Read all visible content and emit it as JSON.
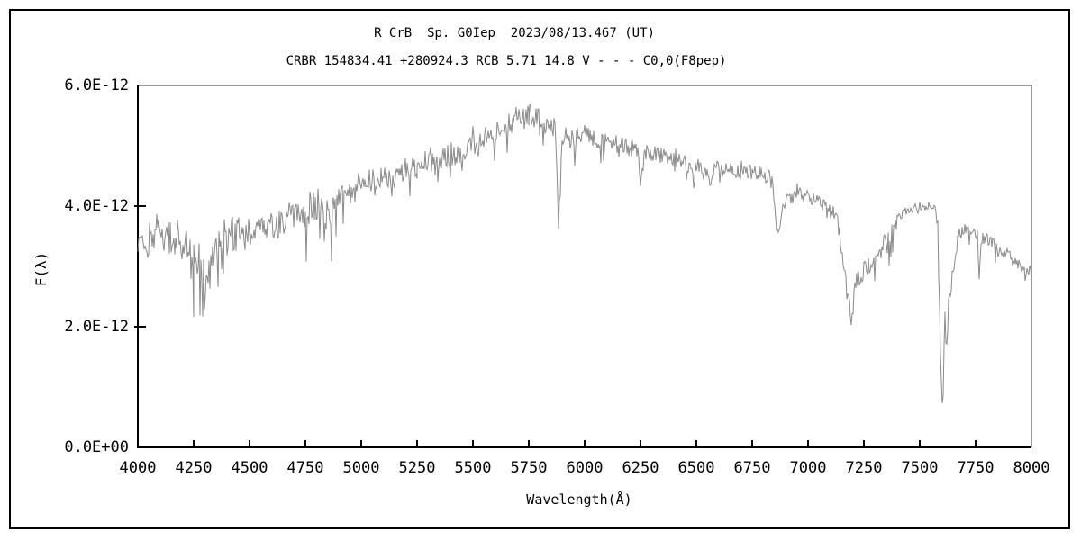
{
  "page": {
    "title_line1": "R CrB  Sp. G0Iep  2023/08/13.467 (UT)",
    "title_line2": "CRBR 154834.41 +280924.3 RCB 5.71 14.8 V - - - C0,0(F8pep)"
  },
  "chart_data": {
    "type": "line",
    "title": "R CrB  Sp. G0Iep  2023/08/13.467 (UT)",
    "subtitle": "CRBR 154834.41 +280924.3 RCB 5.71 14.8 V - - - C0,0(F8pep)",
    "xlabel": "Wavelength(Å)",
    "ylabel": "F(λ)",
    "xlim": [
      4000,
      8000
    ],
    "ylim_e12": [
      0,
      6
    ],
    "grid": false,
    "legend": "none",
    "x_ticks": [
      {
        "label": "4000",
        "value": 4000
      },
      {
        "label": "4250",
        "value": 4250
      },
      {
        "label": "4500",
        "value": 4500
      },
      {
        "label": "4750",
        "value": 4750
      },
      {
        "label": "5000",
        "value": 5000
      },
      {
        "label": "5250",
        "value": 5250
      },
      {
        "label": "5500",
        "value": 5500
      },
      {
        "label": "5750",
        "value": 5750
      },
      {
        "label": "6000",
        "value": 6000
      },
      {
        "label": "6250",
        "value": 6250
      },
      {
        "label": "6500",
        "value": 6500
      },
      {
        "label": "6750",
        "value": 6750
      },
      {
        "label": "7000",
        "value": 7000
      },
      {
        "label": "7250",
        "value": 7250
      },
      {
        "label": "7500",
        "value": 7500
      },
      {
        "label": "7750",
        "value": 7750
      },
      {
        "label": "8000",
        "value": 8000
      }
    ],
    "y_ticks": [
      {
        "label": "0.0E+00",
        "value": 0
      },
      {
        "label": "2.0E-12",
        "value": 2
      },
      {
        "label": "4.0E-12",
        "value": 4
      },
      {
        "label": "6.0E-12",
        "value": 6
      }
    ],
    "colors": {
      "background": "#ffffff",
      "axis": "#000000",
      "box": "#9a9a9a",
      "line": "#8a8a8a",
      "text": "#000000"
    },
    "series": [
      {
        "name": "flux",
        "flux_scale": "1e-12",
        "envelope": [
          [
            4000,
            3.3
          ],
          [
            4030,
            3.2
          ],
          [
            4060,
            3.55
          ],
          [
            4090,
            3.6
          ],
          [
            4120,
            3.5
          ],
          [
            4150,
            3.45
          ],
          [
            4180,
            3.5
          ],
          [
            4210,
            3.45
          ],
          [
            4240,
            3.25
          ],
          [
            4270,
            3.15
          ],
          [
            4290,
            3.0
          ],
          [
            4310,
            2.85
          ],
          [
            4330,
            3.2
          ],
          [
            4360,
            3.45
          ],
          [
            4390,
            3.55
          ],
          [
            4420,
            3.5
          ],
          [
            4450,
            3.55
          ],
          [
            4480,
            3.55
          ],
          [
            4510,
            3.6
          ],
          [
            4540,
            3.65
          ],
          [
            4570,
            3.6
          ],
          [
            4600,
            3.65
          ],
          [
            4630,
            3.7
          ],
          [
            4660,
            3.8
          ],
          [
            4690,
            3.85
          ],
          [
            4720,
            3.8
          ],
          [
            4750,
            3.85
          ],
          [
            4780,
            3.9
          ],
          [
            4810,
            3.95
          ],
          [
            4850,
            3.95
          ],
          [
            4862,
            3.5
          ],
          [
            4875,
            3.95
          ],
          [
            4900,
            4.1
          ],
          [
            4930,
            4.15
          ],
          [
            4960,
            4.25
          ],
          [
            5000,
            4.4
          ],
          [
            5040,
            4.45
          ],
          [
            5080,
            4.5
          ],
          [
            5120,
            4.5
          ],
          [
            5160,
            4.45
          ],
          [
            5200,
            4.6
          ],
          [
            5240,
            4.65
          ],
          [
            5280,
            4.7
          ],
          [
            5320,
            4.7
          ],
          [
            5360,
            4.75
          ],
          [
            5400,
            4.85
          ],
          [
            5440,
            4.9
          ],
          [
            5480,
            4.95
          ],
          [
            5520,
            5.05
          ],
          [
            5560,
            5.15
          ],
          [
            5600,
            5.2
          ],
          [
            5640,
            5.3
          ],
          [
            5680,
            5.4
          ],
          [
            5720,
            5.45
          ],
          [
            5760,
            5.5
          ],
          [
            5800,
            5.45
          ],
          [
            5830,
            5.4
          ],
          [
            5870,
            5.3
          ],
          [
            5885,
            3.7
          ],
          [
            5900,
            5.0
          ],
          [
            5930,
            5.1
          ],
          [
            5960,
            5.15
          ],
          [
            6000,
            5.2
          ],
          [
            6040,
            5.15
          ],
          [
            6080,
            5.1
          ],
          [
            6120,
            5.05
          ],
          [
            6160,
            5.0
          ],
          [
            6200,
            4.95
          ],
          [
            6235,
            4.9
          ],
          [
            6252,
            4.35
          ],
          [
            6268,
            4.85
          ],
          [
            6300,
            4.9
          ],
          [
            6340,
            4.85
          ],
          [
            6380,
            4.8
          ],
          [
            6420,
            4.75
          ],
          [
            6460,
            4.7
          ],
          [
            6500,
            4.7
          ],
          [
            6540,
            4.6
          ],
          [
            6563,
            4.5
          ],
          [
            6590,
            4.65
          ],
          [
            6620,
            4.6
          ],
          [
            6660,
            4.6
          ],
          [
            6700,
            4.6
          ],
          [
            6740,
            4.55
          ],
          [
            6780,
            4.55
          ],
          [
            6820,
            4.5
          ],
          [
            6845,
            4.45
          ],
          [
            6862,
            3.5
          ],
          [
            6880,
            3.85
          ],
          [
            6900,
            4.1
          ],
          [
            6930,
            4.15
          ],
          [
            6960,
            4.2
          ],
          [
            7000,
            4.15
          ],
          [
            7040,
            4.1
          ],
          [
            7080,
            4.0
          ],
          [
            7110,
            3.9
          ],
          [
            7135,
            3.7
          ],
          [
            7150,
            3.3
          ],
          [
            7165,
            2.8
          ],
          [
            7180,
            2.45
          ],
          [
            7192,
            2.15
          ],
          [
            7205,
            2.5
          ],
          [
            7215,
            2.8
          ],
          [
            7230,
            2.75
          ],
          [
            7245,
            2.95
          ],
          [
            7260,
            2.95
          ],
          [
            7280,
            3.05
          ],
          [
            7300,
            3.1
          ],
          [
            7320,
            3.2
          ],
          [
            7340,
            3.35
          ],
          [
            7360,
            3.5
          ],
          [
            7380,
            3.65
          ],
          [
            7400,
            3.8
          ],
          [
            7430,
            3.9
          ],
          [
            7460,
            3.95
          ],
          [
            7500,
            4.0
          ],
          [
            7540,
            4.0
          ],
          [
            7570,
            3.95
          ],
          [
            7582,
            3.6
          ],
          [
            7592,
            1.5
          ],
          [
            7600,
            0.85
          ],
          [
            7606,
            1.1
          ],
          [
            7612,
            2.4
          ],
          [
            7616,
            1.7
          ],
          [
            7622,
            1.95
          ],
          [
            7630,
            2.45
          ],
          [
            7645,
            2.9
          ],
          [
            7658,
            3.25
          ],
          [
            7672,
            3.5
          ],
          [
            7690,
            3.6
          ],
          [
            7710,
            3.65
          ],
          [
            7730,
            3.6
          ],
          [
            7750,
            3.55
          ],
          [
            7760,
            3.5
          ],
          [
            7768,
            2.75
          ],
          [
            7776,
            3.45
          ],
          [
            7800,
            3.45
          ],
          [
            7830,
            3.4
          ],
          [
            7860,
            3.3
          ],
          [
            7890,
            3.2
          ],
          [
            7920,
            3.1
          ],
          [
            7950,
            3.0
          ],
          [
            7975,
            2.95
          ],
          [
            8000,
            2.9
          ]
        ],
        "noise_regions": [
          [
            4000,
            4500,
            0.4,
            0.1,
            1.5
          ],
          [
            4500,
            5000,
            0.34,
            0.09,
            1.4
          ],
          [
            5000,
            5450,
            0.3,
            0.08,
            1.3
          ],
          [
            5450,
            5900,
            0.27,
            0.08,
            1.2
          ],
          [
            5900,
            6500,
            0.22,
            0.07,
            1.2
          ],
          [
            6500,
            6840,
            0.18,
            0.07,
            1.1
          ],
          [
            6840,
            7130,
            0.16,
            0.08,
            1.2
          ],
          [
            7130,
            7250,
            0.22,
            0.1,
            0.9
          ],
          [
            7250,
            7400,
            0.28,
            0.12,
            1.0
          ],
          [
            7400,
            7580,
            0.1,
            0.05,
            0.8
          ],
          [
            7580,
            7660,
            0.22,
            0.1,
            0.8
          ],
          [
            7660,
            8000,
            0.15,
            0.08,
            1.1
          ]
        ],
        "noise_seed": 20230813,
        "sample_step": 4
      }
    ]
  }
}
